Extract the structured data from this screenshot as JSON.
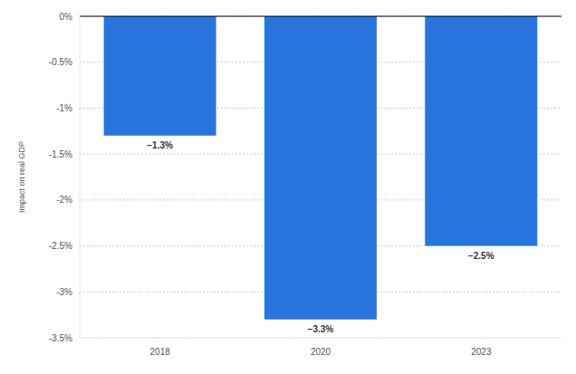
{
  "chart_data": {
    "type": "bar",
    "y_label": "Impact on real GDP",
    "categories": [
      "2018",
      "2020",
      "2023"
    ],
    "values": [
      -1.3,
      -3.3,
      -2.5
    ],
    "value_labels": [
      "−1.3%",
      "−3.3%",
      "−2.5%"
    ],
    "data_labels": true,
    "color": "#2876dd",
    "ylim": [
      -3.5,
      0
    ],
    "yticks": [
      {
        "value": -3.5,
        "label": "-3.5%"
      },
      {
        "value": -3,
        "label": "-3%"
      },
      {
        "value": -2.5,
        "label": "-2.5%"
      },
      {
        "value": -2,
        "label": "-2%"
      },
      {
        "value": -1.5,
        "label": "-1.5%"
      },
      {
        "value": -1,
        "label": "-1%"
      },
      {
        "value": -0.5,
        "label": "-0.5%"
      },
      {
        "value": 0,
        "label": "0%"
      }
    ],
    "grid": true
  }
}
